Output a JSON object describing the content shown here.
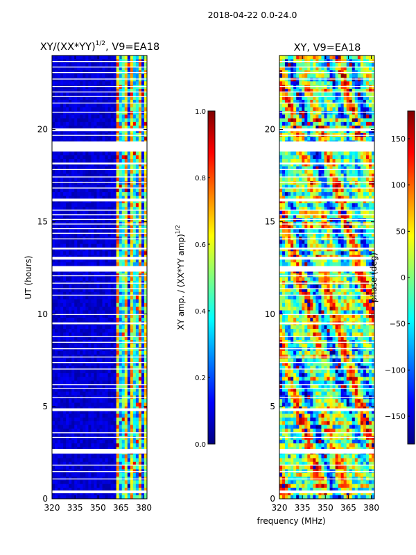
{
  "suptitle": "2018-04-22 0.0-24.0",
  "shared_xlabel": "frequency (MHz)",
  "chart_data": [
    {
      "type": "heatmap",
      "title_main": "XY/(XX*YY)",
      "title_sup": "1/2",
      "title_tail": ", V9=EA18",
      "ylabel": "UT (hours)",
      "xlim": [
        320,
        382
      ],
      "ylim": [
        0,
        24
      ],
      "xticks": [
        "320",
        "335",
        "350",
        "365",
        "380"
      ],
      "xtick_values": [
        320,
        335,
        350,
        365,
        380
      ],
      "yticks": [
        "0",
        "5",
        "10",
        "15",
        "20"
      ],
      "ytick_values": [
        0,
        5,
        10,
        15,
        20
      ],
      "colorbar": {
        "label_main": "XY amp. / (XX*YY amp)",
        "label_sup": "1/2",
        "range": [
          0.0,
          1.0
        ],
        "ticks": [
          "0.0",
          "0.2",
          "0.4",
          "0.6",
          "0.8",
          "1.0"
        ],
        "tick_values": [
          0.0,
          0.2,
          0.4,
          0.6,
          0.8,
          1.0
        ],
        "colormap": "jet"
      }
    },
    {
      "type": "heatmap",
      "title": "XY, V9=EA18",
      "xlim": [
        320,
        382
      ],
      "ylim": [
        0,
        24
      ],
      "xticks": [
        "320",
        "335",
        "350",
        "365",
        "380"
      ],
      "xtick_values": [
        320,
        335,
        350,
        365,
        380
      ],
      "yticks": [
        "0",
        "5",
        "10",
        "15",
        "20"
      ],
      "ytick_values": [
        0,
        5,
        10,
        15,
        20
      ],
      "colorbar": {
        "label": "phase (deg)",
        "range": [
          -180,
          180
        ],
        "ticks": [
          "−150",
          "−100",
          "−50",
          "0",
          "50",
          "100",
          "150"
        ],
        "tick_values": [
          -150,
          -100,
          -50,
          0,
          50,
          100,
          150
        ],
        "colormap": "jet"
      }
    }
  ],
  "gaps_ut": [
    [
      0.3,
      0.45
    ],
    [
      1.05,
      1.1
    ],
    [
      1.45,
      1.5
    ],
    [
      1.8,
      1.85
    ],
    [
      2.45,
      2.7
    ],
    [
      3.3,
      3.35
    ],
    [
      3.55,
      3.6
    ],
    [
      4.75,
      4.9
    ],
    [
      5.45,
      5.5
    ],
    [
      5.95,
      6.0
    ],
    [
      6.15,
      6.2
    ],
    [
      7.0,
      7.05
    ],
    [
      7.35,
      7.4
    ],
    [
      7.65,
      7.7
    ],
    [
      8.1,
      8.15
    ],
    [
      8.45,
      8.5
    ],
    [
      8.75,
      8.8
    ],
    [
      9.45,
      9.55
    ],
    [
      9.95,
      10.0
    ],
    [
      11.0,
      11.05
    ],
    [
      11.35,
      11.4
    ],
    [
      11.65,
      11.7
    ],
    [
      12.05,
      12.1
    ],
    [
      12.3,
      12.6
    ],
    [
      12.95,
      13.1
    ],
    [
      13.5,
      13.6
    ],
    [
      14.05,
      14.1
    ],
    [
      14.35,
      14.4
    ],
    [
      14.6,
      14.65
    ],
    [
      14.85,
      14.9
    ],
    [
      15.1,
      15.15
    ],
    [
      15.35,
      15.4
    ],
    [
      15.6,
      15.65
    ],
    [
      16.1,
      16.25
    ],
    [
      16.8,
      16.85
    ],
    [
      17.1,
      17.15
    ],
    [
      17.4,
      17.45
    ],
    [
      17.8,
      17.85
    ],
    [
      18.1,
      18.2
    ],
    [
      18.8,
      19.35
    ],
    [
      19.65,
      19.7
    ],
    [
      19.9,
      20.05
    ],
    [
      20.9,
      20.95
    ],
    [
      21.4,
      21.45
    ],
    [
      21.75,
      21.8
    ],
    [
      22.0,
      22.05
    ],
    [
      22.3,
      22.35
    ],
    [
      22.7,
      22.75
    ],
    [
      23.05,
      23.1
    ],
    [
      23.35,
      23.4
    ],
    [
      23.65,
      23.7
    ]
  ]
}
